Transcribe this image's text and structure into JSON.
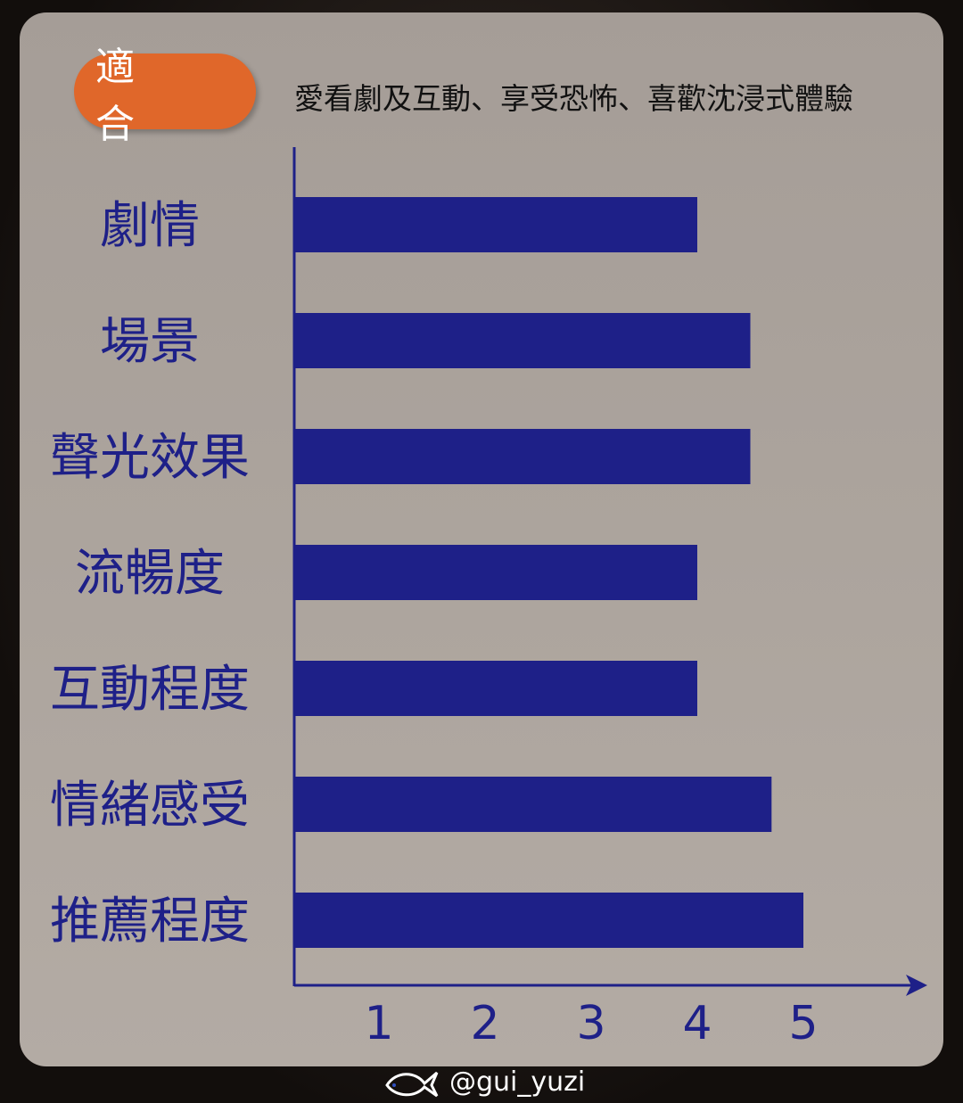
{
  "header": {
    "tag_label": "適 合",
    "subtitle": "愛看劇及互動、享受恐怖、喜歡沈浸式體驗"
  },
  "colors": {
    "bar": "#1e2088",
    "tag": "#e0672a",
    "axis": "#1e2088"
  },
  "chart_data": {
    "type": "bar",
    "orientation": "horizontal",
    "categories": [
      "劇情",
      "場景",
      "聲光效果",
      "流暢度",
      "互動程度",
      "情緒感受",
      "推薦程度"
    ],
    "values": [
      4,
      4.5,
      4.5,
      4,
      4,
      4.7,
      5
    ],
    "xticks": [
      "1",
      "2",
      "3",
      "4",
      "5"
    ],
    "title": "",
    "xlabel": "",
    "ylabel": "",
    "grid": false
  },
  "watermark": {
    "handle": "@gui_yuzi",
    "icon": "fish-icon"
  }
}
